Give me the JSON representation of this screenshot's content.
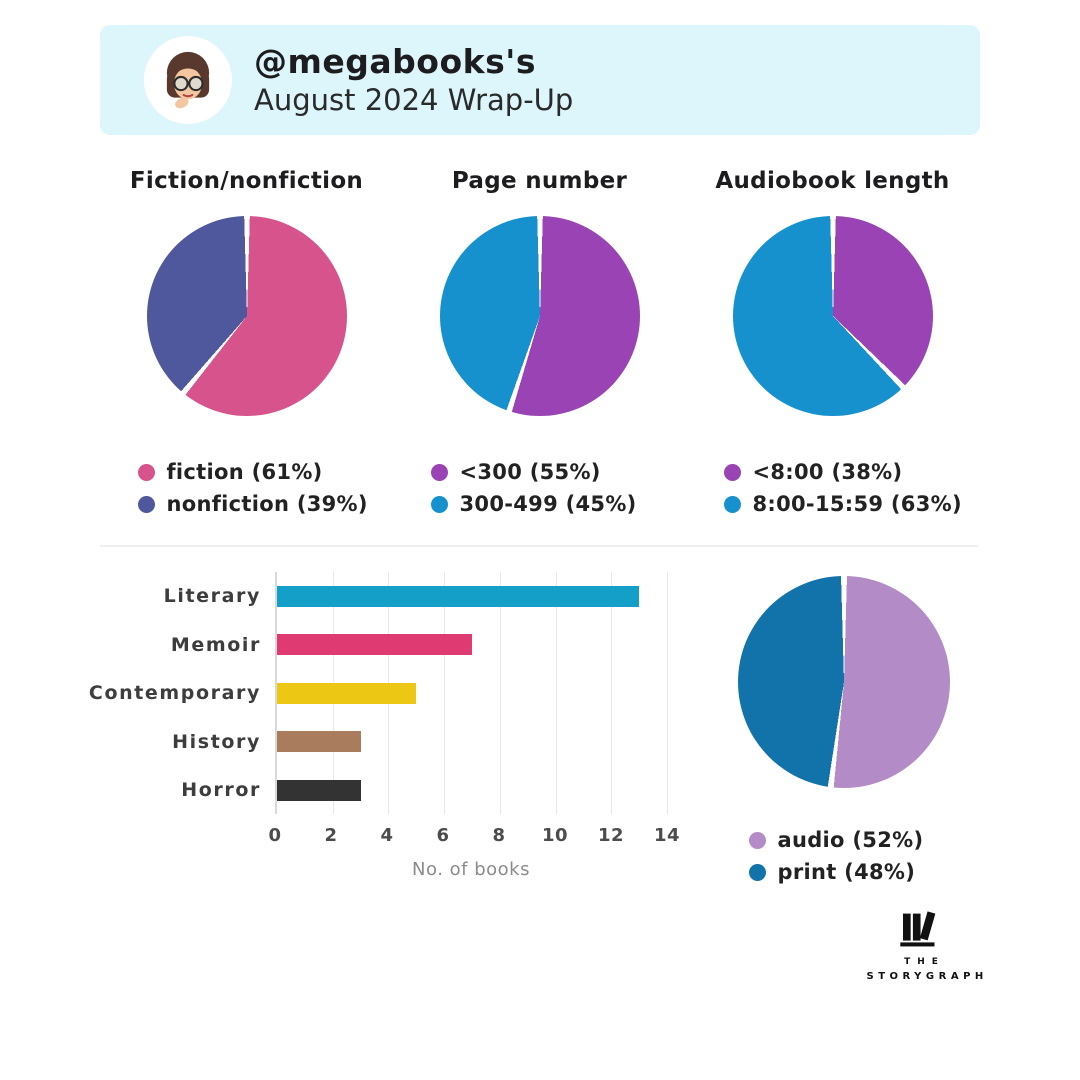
{
  "header": {
    "handle_line": "@megabooks's",
    "subtitle_line": "August 2024 Wrap-Up",
    "bg_color": "#dcf6fb",
    "avatar": "memoji-woman-glasses-thinking"
  },
  "chart_data": [
    {
      "type": "pie",
      "title": "Fiction/nonfiction",
      "slices": [
        {
          "label": "fiction",
          "pct": 61,
          "legend": "fiction (61%)",
          "color": "#d6538c"
        },
        {
          "label": "nonfiction",
          "pct": 39,
          "legend": "nonfiction (39%)",
          "color": "#4f589d"
        }
      ],
      "start_angle": "top",
      "direction": "clockwise",
      "legend_position": "bottom"
    },
    {
      "type": "pie",
      "title": "Page number",
      "slices": [
        {
          "label": "<300",
          "pct": 55,
          "legend": "<300 (55%)",
          "color": "#9a43b4"
        },
        {
          "label": "300-499",
          "pct": 45,
          "legend": "300-499 (45%)",
          "color": "#1691ce"
        }
      ],
      "start_angle": "top",
      "direction": "clockwise",
      "legend_position": "bottom"
    },
    {
      "type": "pie",
      "title": "Audiobook length",
      "slices": [
        {
          "label": "<8:00",
          "pct": 38,
          "legend": "<8:00 (38%)",
          "color": "#9a43b4"
        },
        {
          "label": "8:00-15:59",
          "pct": 63,
          "legend": "8:00-15:59 (63%)",
          "color": "#1691ce"
        }
      ],
      "start_angle": "top",
      "direction": "clockwise",
      "legend_position": "bottom"
    },
    {
      "type": "bar",
      "orientation": "horizontal",
      "categories": [
        "Literary",
        "Memoir",
        "Contemporary",
        "History",
        "Horror"
      ],
      "values": [
        13,
        7,
        5,
        3,
        3
      ],
      "bar_colors": [
        "#149fc9",
        "#e03a72",
        "#ecc713",
        "#a87c5d",
        "#333333"
      ],
      "xticks": [
        0,
        2,
        4,
        6,
        8,
        10,
        12,
        14
      ],
      "xlim": [
        0,
        14
      ],
      "xlabel": "No. of books",
      "grid": "vertical-light"
    },
    {
      "type": "pie",
      "title": "",
      "slices": [
        {
          "label": "audio",
          "pct": 52,
          "legend": "audio (52%)",
          "color": "#b38bc6"
        },
        {
          "label": "print",
          "pct": 48,
          "legend": "print (48%)",
          "color": "#1173aa"
        }
      ],
      "start_angle": "top",
      "direction": "clockwise",
      "legend_position": "bottom"
    }
  ],
  "footer": {
    "logo_line1": "THE",
    "logo_line2": "STORYGRAPH"
  }
}
